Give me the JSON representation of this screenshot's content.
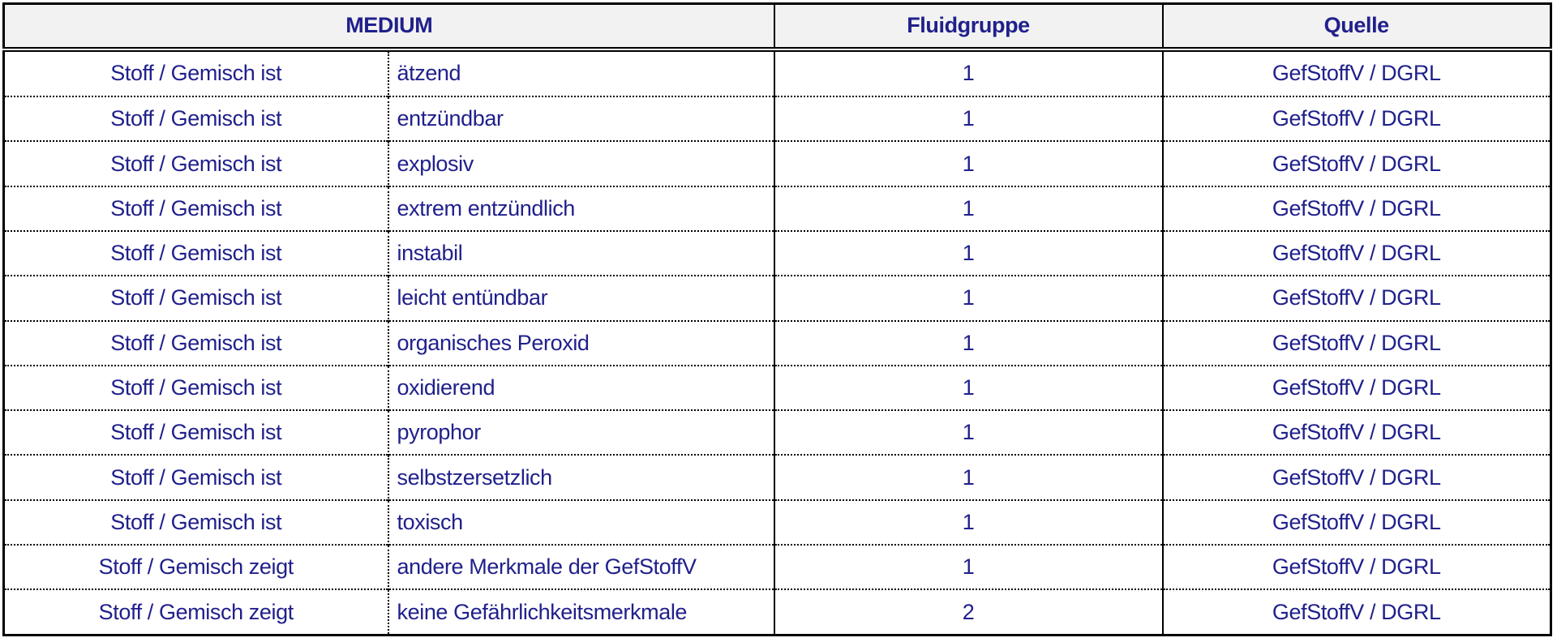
{
  "table": {
    "headers": {
      "medium": "MEDIUM",
      "fluidgruppe": "Fluidgruppe",
      "quelle": "Quelle"
    },
    "rows": [
      {
        "subject": "Stoff / Gemisch ist",
        "property": "ätzend",
        "fluidgruppe": "1",
        "quelle": "GefStoffV / DGRL"
      },
      {
        "subject": "Stoff / Gemisch ist",
        "property": "entzündbar",
        "fluidgruppe": "1",
        "quelle": "GefStoffV / DGRL"
      },
      {
        "subject": "Stoff / Gemisch ist",
        "property": "explosiv",
        "fluidgruppe": "1",
        "quelle": "GefStoffV / DGRL"
      },
      {
        "subject": "Stoff / Gemisch ist",
        "property": "extrem entzündlich",
        "fluidgruppe": "1",
        "quelle": "GefStoffV / DGRL"
      },
      {
        "subject": "Stoff / Gemisch ist",
        "property": "instabil",
        "fluidgruppe": "1",
        "quelle": "GefStoffV / DGRL"
      },
      {
        "subject": "Stoff / Gemisch ist",
        "property": "leicht entündbar",
        "fluidgruppe": "1",
        "quelle": "GefStoffV / DGRL"
      },
      {
        "subject": "Stoff / Gemisch ist",
        "property": "organisches Peroxid",
        "fluidgruppe": "1",
        "quelle": "GefStoffV / DGRL"
      },
      {
        "subject": "Stoff / Gemisch ist",
        "property": "oxidierend",
        "fluidgruppe": "1",
        "quelle": "GefStoffV / DGRL"
      },
      {
        "subject": "Stoff / Gemisch ist",
        "property": "pyrophor",
        "fluidgruppe": "1",
        "quelle": "GefStoffV / DGRL"
      },
      {
        "subject": "Stoff / Gemisch ist",
        "property": "selbstzersetzlich",
        "fluidgruppe": "1",
        "quelle": "GefStoffV / DGRL"
      },
      {
        "subject": "Stoff / Gemisch ist",
        "property": "toxisch",
        "fluidgruppe": "1",
        "quelle": "GefStoffV / DGRL"
      },
      {
        "subject": "Stoff / Gemisch zeigt",
        "property": "andere Merkmale der GefStoffV",
        "fluidgruppe": "1",
        "quelle": "GefStoffV / DGRL"
      },
      {
        "subject": "Stoff / Gemisch zeigt",
        "property": "keine Gefährlichkeitsmerkmale",
        "fluidgruppe": "2",
        "quelle": "GefStoffV / DGRL"
      }
    ]
  },
  "colors": {
    "text": "#20208c",
    "header_background": "#f2f2f2",
    "border": "#000000",
    "page_background": "#ffffff"
  }
}
